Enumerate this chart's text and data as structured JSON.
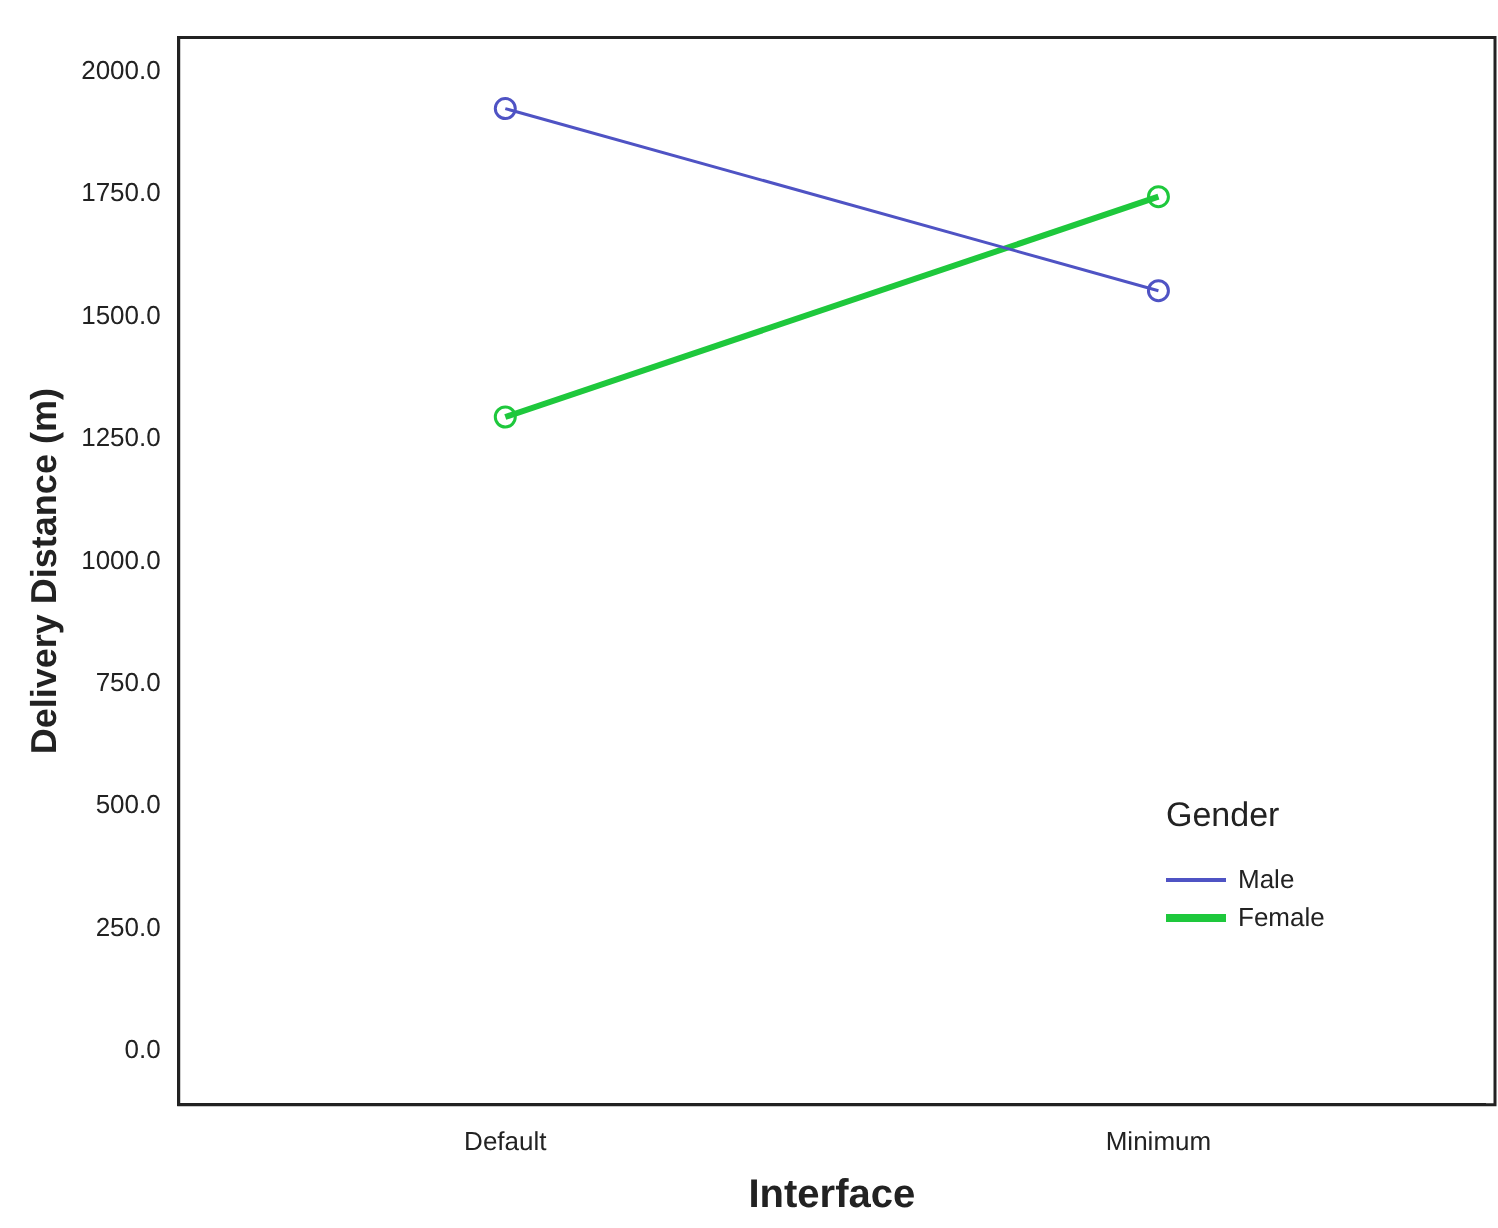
{
  "chart_data": {
    "type": "line",
    "xlabel": "Interface",
    "ylabel": "Delivery Distance (m)",
    "legend_title": "Gender",
    "categories": [
      "Default",
      "Minimum"
    ],
    "series": [
      {
        "name": "Male",
        "color": "#4f53c4",
        "values": [
          1925,
          1553
        ]
      },
      {
        "name": "Female",
        "color": "#1ec83c",
        "values": [
          1295,
          1745
        ]
      }
    ],
    "ylim": [
      -110,
      2070
    ],
    "yticks": [
      {
        "value": 0,
        "label": "0.0"
      },
      {
        "value": 250,
        "label": "250.0"
      },
      {
        "value": 500,
        "label": "500.0"
      },
      {
        "value": 750,
        "label": "750.0"
      },
      {
        "value": 1000,
        "label": "1000.0"
      },
      {
        "value": 1250,
        "label": "1250.0"
      },
      {
        "value": 1500,
        "label": "1500.0"
      },
      {
        "value": 1750,
        "label": "1750.0"
      },
      {
        "value": 2000,
        "label": "2000.0"
      }
    ],
    "grid": false,
    "legend": "bottom right",
    "marker": "circle",
    "line_style": "solid"
  }
}
